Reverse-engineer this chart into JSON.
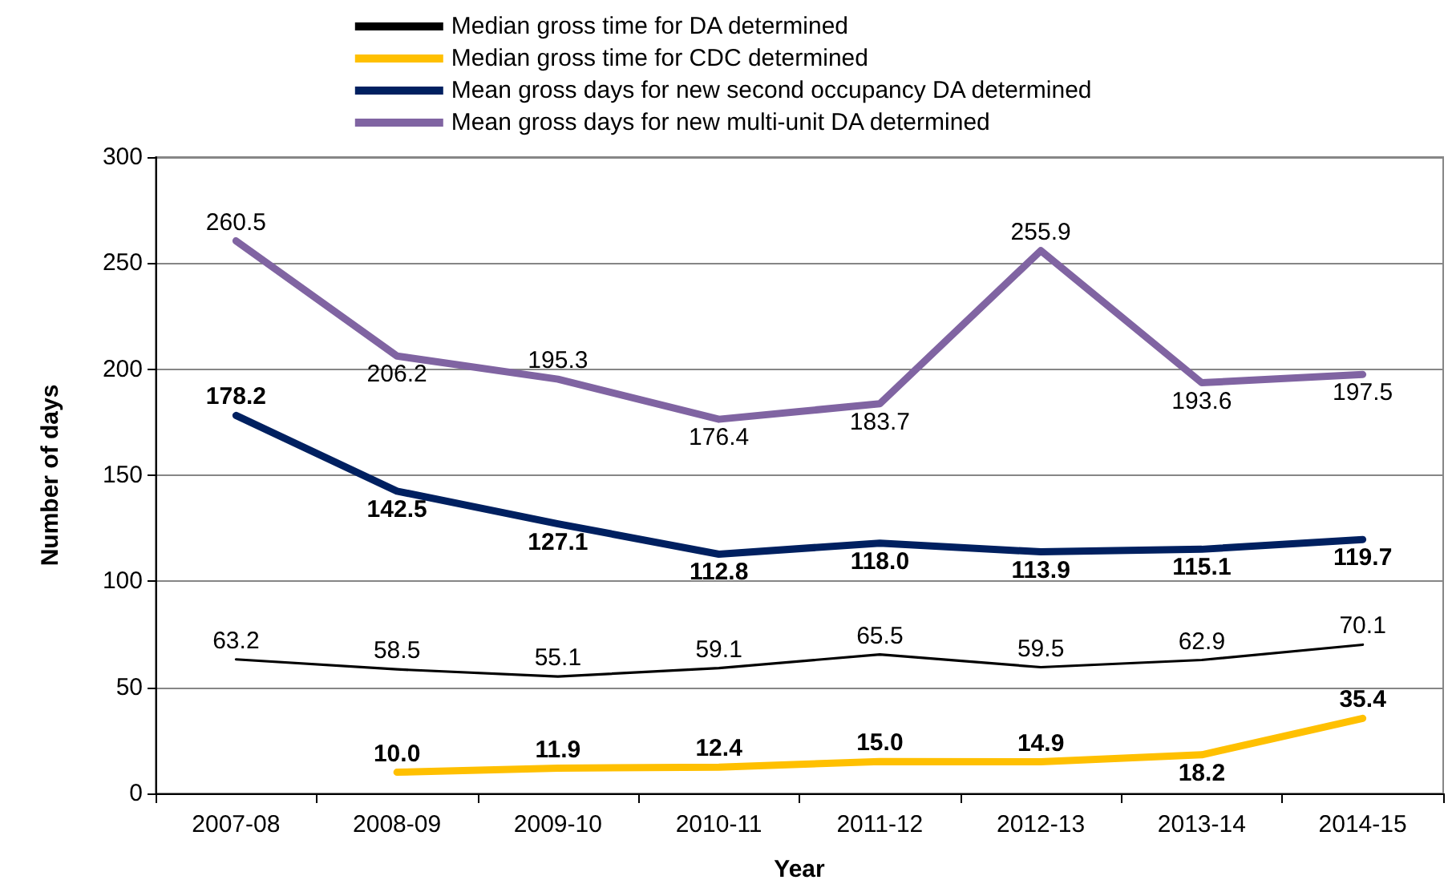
{
  "chart_data": {
    "type": "line",
    "xlabel": "Year",
    "ylabel": "Number of days",
    "categories": [
      "2007-08",
      "2008-09",
      "2009-10",
      "2010-11",
      "2011-12",
      "2012-13",
      "2013-14",
      "2014-15"
    ],
    "series": [
      {
        "name": "Median gross time for DA determined",
        "color": "#000000",
        "values": [
          63.2,
          58.5,
          55.1,
          59.1,
          65.5,
          59.5,
          62.9,
          70.1
        ],
        "value_labels": [
          "63.2",
          "58.5",
          "55.1",
          "59.1",
          "65.5",
          "59.5",
          "62.9",
          "70.1"
        ]
      },
      {
        "name": "Median gross time for CDC determined",
        "color": "#ffc000",
        "values": [
          null,
          10.0,
          11.9,
          12.4,
          15.0,
          14.9,
          18.2,
          35.4
        ],
        "value_labels": [
          null,
          "10.0",
          "11.9",
          "12.4",
          "15.0",
          "14.9",
          "18.2",
          "35.4"
        ]
      },
      {
        "name": "Mean gross days for new second occupancy DA determined",
        "color": "#002060",
        "values": [
          178.2,
          142.5,
          127.1,
          112.8,
          118.0,
          113.9,
          115.1,
          119.7
        ],
        "value_labels": [
          "178.2",
          "142.5",
          "127.1",
          "112.8",
          "118.0",
          "113.9",
          "115.1",
          "119.7"
        ]
      },
      {
        "name": "Mean gross days for new multi-unit DA determined",
        "color": "#8064a2",
        "values": [
          260.5,
          206.2,
          195.3,
          176.4,
          183.7,
          255.9,
          193.6,
          197.5
        ],
        "value_labels": [
          "260.5",
          "206.2",
          "195.3",
          "176.4",
          "183.7",
          "255.9",
          "193.6",
          "197.5"
        ]
      }
    ],
    "ylim": [
      0,
      300
    ],
    "yticks": [
      0,
      50,
      100,
      150,
      200,
      250,
      300
    ],
    "grid": "y",
    "legend": "top",
    "marker": "none",
    "line_style": "solid"
  }
}
